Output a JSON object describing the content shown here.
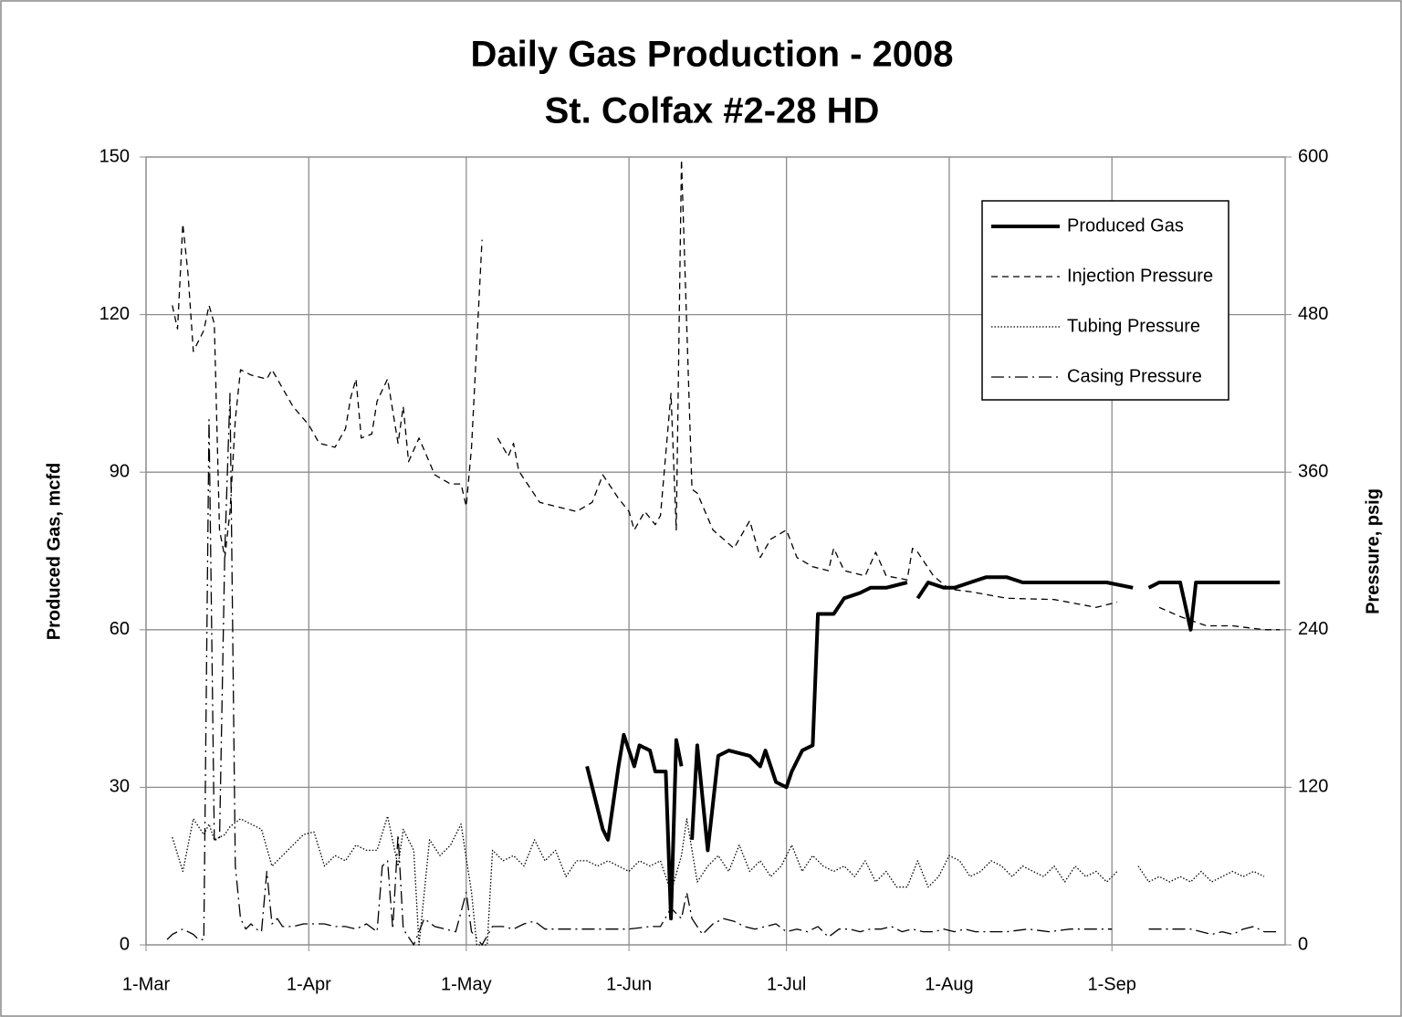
{
  "chart_data": {
    "type": "line",
    "title": "Daily Gas Production - 2008",
    "subtitle": "St. Colfax #2-28 HD",
    "y_label": "Produced Gas, mcfd",
    "y2_label": "Pressure, psig",
    "xlim": [
      0,
      217
    ],
    "xticks": [
      {
        "value": 0,
        "label": "1-Mar"
      },
      {
        "value": 31,
        "label": "1-Apr"
      },
      {
        "value": 61,
        "label": "1-May"
      },
      {
        "value": 92,
        "label": "1-Jun"
      },
      {
        "value": 122,
        "label": "1-Jul"
      },
      {
        "value": 153,
        "label": "1-Aug"
      },
      {
        "value": 184,
        "label": "1-Sep"
      }
    ],
    "ylim": [
      0,
      150
    ],
    "yticks": [
      0,
      30,
      60,
      90,
      120,
      150
    ],
    "y2lim": [
      0,
      600
    ],
    "y2ticks": [
      0,
      120,
      240,
      360,
      480,
      600
    ],
    "grid": true,
    "legend": "upper right",
    "series": [
      {
        "name": "Produced Gas",
        "color": "#000000",
        "dash": "solid",
        "width": 4,
        "x": [
          84,
          87,
          88,
          90,
          91,
          93,
          94,
          96,
          97,
          99,
          100,
          101,
          102,
          103,
          104,
          105,
          107,
          109,
          111,
          115,
          117,
          118,
          120,
          122,
          123,
          125,
          127,
          128,
          131,
          133,
          136,
          138,
          141,
          145,
          146,
          147,
          149,
          152,
          154,
          157,
          160,
          164,
          167,
          172,
          178,
          183,
          188,
          189,
          191,
          193,
          197,
          199,
          200,
          204,
          209,
          216
        ],
        "values": [
          34,
          22,
          20,
          34,
          40,
          34,
          38,
          37,
          33,
          33,
          5,
          39,
          34,
          null,
          20,
          38,
          18,
          36,
          37,
          36,
          34,
          37,
          31,
          30,
          33,
          37,
          38,
          63,
          63,
          66,
          67,
          68,
          68,
          69,
          null,
          66,
          69,
          68,
          68,
          69,
          70,
          70,
          69,
          69,
          69,
          69,
          68,
          null,
          68,
          69,
          69,
          60,
          69,
          69,
          69,
          69
        ]
      },
      {
        "name": "Injection Pressure",
        "color": "#000000",
        "dash": "dashed",
        "width": 1.3,
        "axis": "y2",
        "x": [
          5,
          6,
          7,
          8,
          9,
          11,
          12,
          13,
          14,
          15,
          16,
          17,
          18,
          20,
          23,
          24,
          28,
          31,
          33,
          36,
          38,
          39,
          40,
          41,
          43,
          44,
          46,
          48,
          49,
          50,
          52,
          55,
          58,
          60,
          61,
          62,
          64,
          65,
          67,
          69,
          70,
          71,
          75,
          78,
          82,
          85,
          87,
          90,
          92,
          93,
          95,
          97,
          98,
          100,
          101,
          102,
          104,
          105,
          108,
          112,
          115,
          117,
          119,
          122,
          124,
          127,
          130,
          131,
          133,
          137,
          139,
          141,
          145,
          146,
          147,
          150,
          153,
          157,
          164,
          173,
          181,
          185,
          189,
          193,
          197,
          202,
          207,
          213,
          216
        ],
        "values": [
          487,
          469,
          549,
          511,
          452,
          468,
          487,
          473,
          316,
          295,
          330,
          400,
          438,
          434,
          431,
          438,
          410,
          396,
          382,
          379,
          393,
          417,
          431,
          386,
          389,
          414,
          431,
          382,
          410,
          368,
          386,
          358,
          351,
          351,
          334,
          379,
          537,
          null,
          386,
          372,
          382,
          361,
          337,
          334,
          330,
          337,
          358,
          340,
          330,
          316,
          330,
          320,
          327,
          420,
          316,
          598,
          347,
          344,
          316,
          302,
          323,
          295,
          309,
          316,
          295,
          288,
          285,
          302,
          285,
          281,
          299,
          281,
          278,
          302,
          299,
          281,
          271,
          269,
          264,
          263,
          257,
          261,
          null,
          257,
          250,
          243,
          243,
          240,
          240
        ]
      },
      {
        "name": "Tubing Pressure",
        "color": "#000000",
        "dash": "dotted",
        "width": 1.3,
        "axis": "y2",
        "x": [
          5,
          7,
          9,
          11,
          12,
          13,
          15,
          16,
          18,
          20,
          22,
          24,
          27,
          30,
          32,
          34,
          36,
          38,
          40,
          42,
          44,
          46,
          48,
          49,
          51,
          52,
          54,
          56,
          58,
          60,
          62,
          63,
          65,
          66,
          68,
          70,
          72,
          74,
          76,
          78,
          80,
          82,
          84,
          86,
          88,
          90,
          92,
          94,
          96,
          98,
          100,
          102,
          103,
          105,
          107,
          109,
          111,
          113,
          115,
          117,
          119,
          121,
          123,
          125,
          127,
          129,
          131,
          133,
          135,
          137,
          139,
          141,
          143,
          145,
          147,
          149,
          151,
          153,
          155,
          157,
          159,
          161,
          163,
          165,
          167,
          169,
          171,
          173,
          175,
          177,
          179,
          181,
          183,
          185,
          187,
          189,
          191,
          193,
          195,
          197,
          199,
          201,
          203,
          205,
          207,
          209,
          211,
          213
        ],
        "values": [
          82,
          56,
          96,
          84,
          92,
          80,
          84,
          90,
          96,
          92,
          88,
          60,
          72,
          84,
          86,
          60,
          68,
          64,
          76,
          72,
          72,
          98,
          60,
          88,
          72,
          0,
          80,
          68,
          76,
          92,
          40,
          0,
          0,
          72,
          64,
          68,
          60,
          80,
          64,
          72,
          52,
          64,
          64,
          60,
          64,
          60,
          56,
          64,
          60,
          64,
          40,
          68,
          96,
          48,
          60,
          68,
          56,
          76,
          56,
          64,
          52,
          60,
          76,
          56,
          68,
          60,
          56,
          60,
          52,
          64,
          48,
          56,
          44,
          44,
          64,
          44,
          52,
          68,
          64,
          52,
          56,
          64,
          60,
          52,
          60,
          56,
          52,
          60,
          48,
          60,
          52,
          56,
          48,
          56,
          null,
          60,
          48,
          52,
          48,
          52,
          48,
          56,
          48,
          52,
          56,
          52,
          56,
          52
        ]
      },
      {
        "name": "Casing Pressure",
        "color": "#000000",
        "dash": "dashdot",
        "width": 1.3,
        "axis": "y2",
        "x": [
          4,
          5,
          7,
          9,
          10,
          11,
          12,
          13,
          14,
          15,
          16,
          17,
          18,
          19,
          20,
          21,
          22,
          23,
          24,
          25,
          26,
          28,
          30,
          32,
          34,
          36,
          38,
          40,
          42,
          44,
          45,
          46,
          47,
          48,
          49,
          51,
          53,
          55,
          57,
          59,
          61,
          62,
          64,
          66,
          68,
          70,
          72,
          74,
          76,
          78,
          80,
          84,
          88,
          92,
          96,
          98,
          100,
          102,
          103,
          104,
          106,
          108,
          110,
          112,
          114,
          116,
          118,
          120,
          122,
          124,
          126,
          128,
          130,
          132,
          134,
          136,
          138,
          140,
          142,
          144,
          146,
          148,
          150,
          152,
          154,
          156,
          158,
          160,
          164,
          168,
          172,
          176,
          180,
          184,
          189,
          191,
          195,
          199,
          201,
          203,
          205,
          207,
          209,
          211,
          213,
          216
        ],
        "values": [
          4,
          8,
          12,
          8,
          4,
          4,
          400,
          80,
          80,
          300,
          420,
          60,
          20,
          12,
          16,
          12,
          10,
          56,
          16,
          20,
          14,
          14,
          16,
          16,
          16,
          14,
          14,
          12,
          16,
          10,
          60,
          64,
          12,
          84,
          12,
          0,
          20,
          14,
          12,
          10,
          40,
          10,
          0,
          14,
          14,
          12,
          16,
          18,
          12,
          12,
          12,
          12,
          12,
          12,
          14,
          14,
          28,
          20,
          40,
          20,
          8,
          16,
          20,
          18,
          14,
          12,
          14,
          16,
          10,
          12,
          10,
          14,
          6,
          12,
          12,
          10,
          12,
          12,
          14,
          10,
          12,
          10,
          10,
          12,
          10,
          12,
          10,
          10,
          10,
          12,
          10,
          12,
          12,
          12,
          null,
          12,
          12,
          12,
          10,
          8,
          10,
          8,
          12,
          14,
          10,
          10
        ]
      }
    ]
  }
}
